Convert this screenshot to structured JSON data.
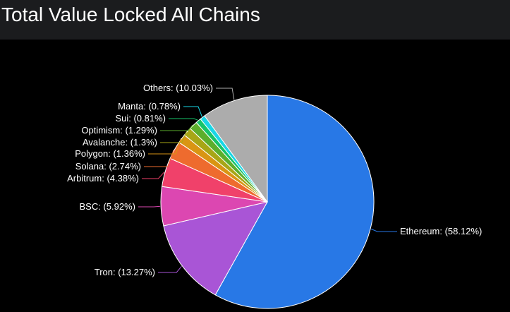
{
  "chart_data": {
    "type": "pie",
    "title": "Total Value Locked All Chains",
    "legend": "none",
    "slices": [
      {
        "label": "Ethereum",
        "value": 58.12,
        "color": "#2878e6",
        "display": "Ethereum: (58.12%)"
      },
      {
        "label": "Tron",
        "value": 13.27,
        "color": "#a955d6",
        "display": "Tron: (13.27%)"
      },
      {
        "label": "BSC",
        "value": 5.92,
        "color": "#dc47b1",
        "display": "BSC: (5.92%)"
      },
      {
        "label": "Arbitrum",
        "value": 4.38,
        "color": "#f0416a",
        "display": "Arbitrum: (4.38%)"
      },
      {
        "label": "Solana",
        "value": 2.74,
        "color": "#ee6b2e",
        "display": "Solana: (2.74%)"
      },
      {
        "label": "Polygon",
        "value": 1.36,
        "color": "#d99513",
        "display": "Polygon: (1.36%)"
      },
      {
        "label": "Avalanche",
        "value": 1.3,
        "color": "#a7a616",
        "display": "Avalanche: (1.3%)"
      },
      {
        "label": "Optimism",
        "value": 1.29,
        "color": "#5cae2c",
        "display": "Optimism: (1.29%)"
      },
      {
        "label": "Sui",
        "value": 0.81,
        "color": "#16c46a",
        "display": "Sui: (0.81%)"
      },
      {
        "label": "Manta",
        "value": 0.78,
        "color": "#19d6e6",
        "display": "Manta: (0.78%)"
      },
      {
        "label": "Others",
        "value": 10.03,
        "color": "#acacac",
        "display": "Others: (10.03%)"
      }
    ]
  }
}
